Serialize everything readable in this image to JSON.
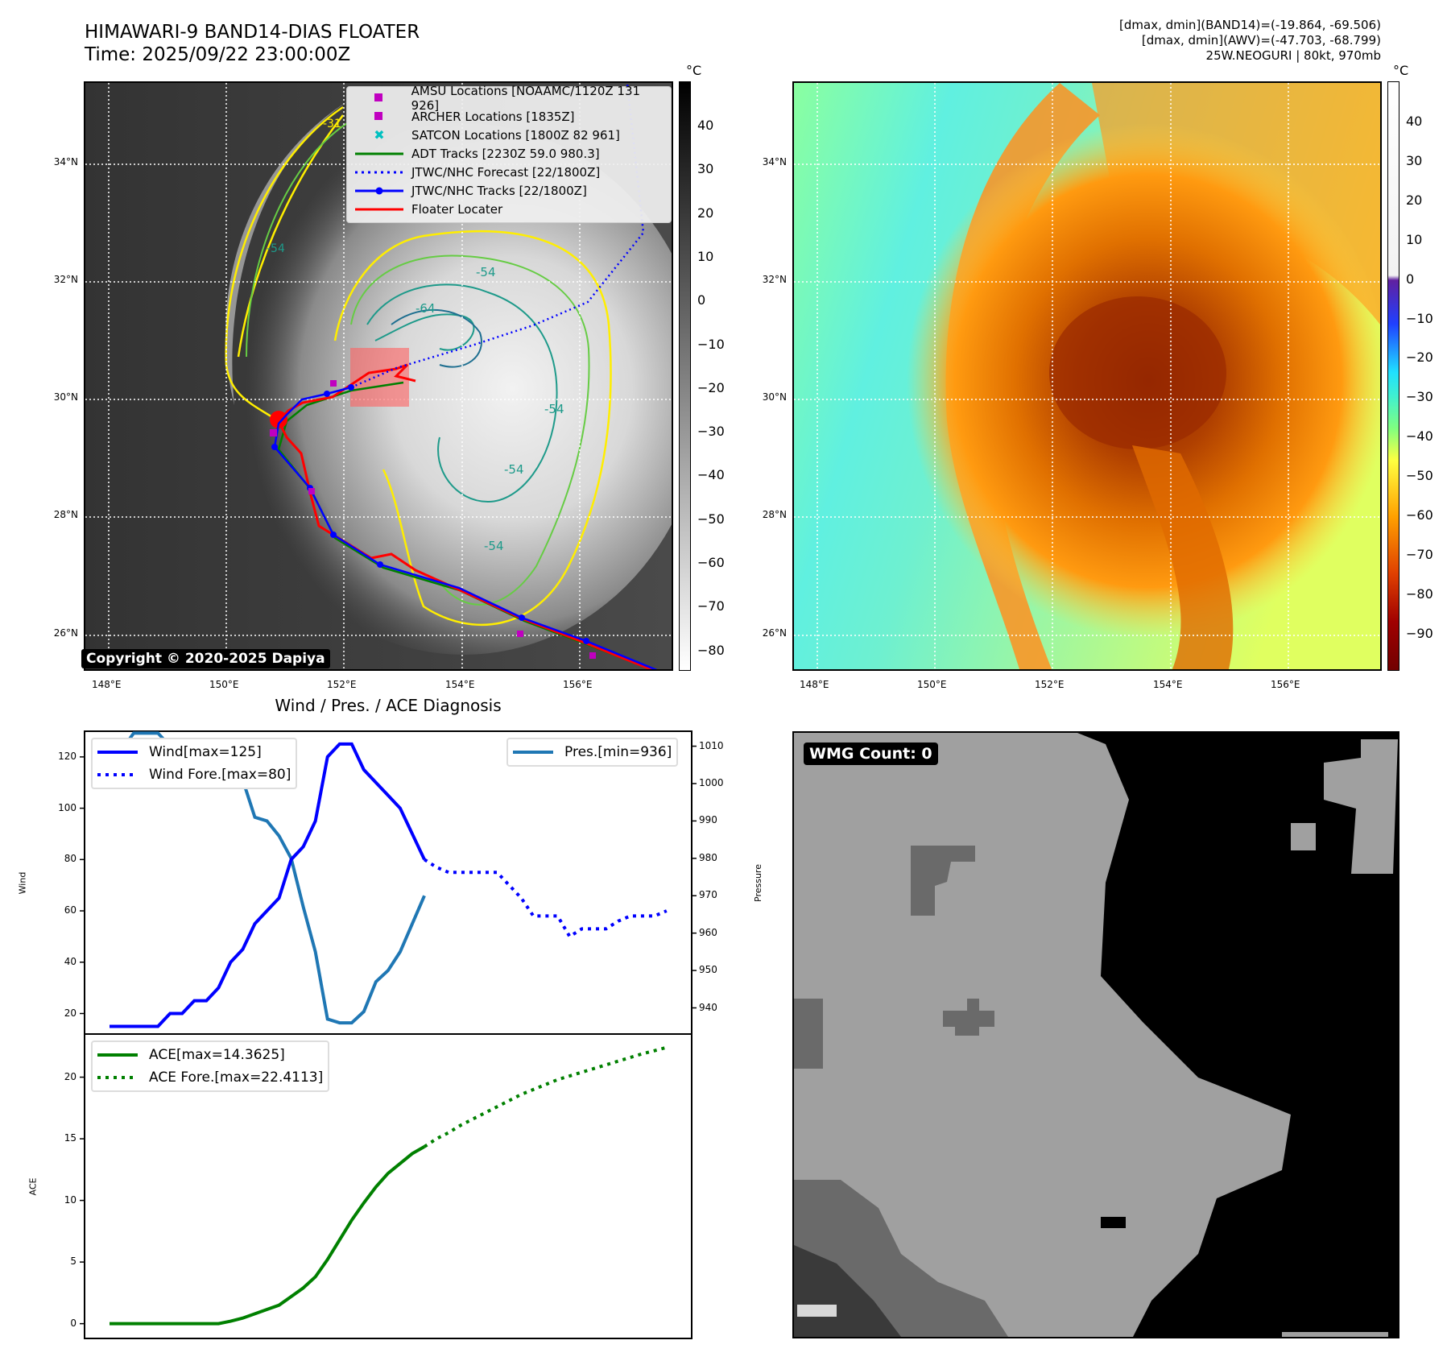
{
  "header": {
    "title_line1": "HIMAWARI-9 BAND14-DIAS FLOATER",
    "title_line2": "Time: 2025/09/22 23:00:00Z",
    "info_line1": "[dmax, dmin](BAND14)=(-19.864, -69.506)",
    "info_line2": "[dmax, dmin](AWV)=(-47.703, -68.799)",
    "info_line3": "25W.NEOGURI | 80kt, 970mb"
  },
  "map": {
    "lat_labels": [
      "34°N",
      "32°N",
      "30°N",
      "28°N",
      "26°N"
    ],
    "lon_labels": [
      "148°E",
      "150°E",
      "152°E",
      "154°E",
      "156°E"
    ],
    "contour_labels": [
      "-54",
      "-54",
      "-64",
      "-54",
      "-54",
      "-54",
      "-31"
    ],
    "copyright": "Copyright © 2020-2025 Dapiya",
    "legend": [
      {
        "label": "AMSU Locations [NOAAMC/1120Z 131 926]",
        "symbol": "square",
        "color": "#c000c0"
      },
      {
        "label": "ARCHER Locations [1835Z]",
        "symbol": "square",
        "color": "#c000c0"
      },
      {
        "label": "SATCON Locations [1800Z 82 961]",
        "symbol": "x",
        "color": "#00c0c0"
      },
      {
        "label": "ADT Tracks [2230Z 59.0 980.3]",
        "symbol": "line",
        "color": "#008000"
      },
      {
        "label": "JTWC/NHC Forecast [22/1800Z]",
        "symbol": "dotted",
        "color": "#0000ff"
      },
      {
        "label": "JTWC/NHC Tracks [22/1800Z]",
        "symbol": "line-dot",
        "color": "#0000ff"
      },
      {
        "label": "Floater Locater",
        "symbol": "line",
        "color": "#ff0000"
      }
    ]
  },
  "colorbar_band14": {
    "unit": "°C",
    "ticks": [
      "40",
      "30",
      "20",
      "10",
      "0",
      "−10",
      "−20",
      "−30",
      "−40",
      "−50",
      "−60",
      "−70",
      "−80"
    ]
  },
  "colorbar_awv": {
    "unit": "°C",
    "ticks": [
      "40",
      "30",
      "20",
      "10",
      "0",
      "−10",
      "−20",
      "−30",
      "−40",
      "−50",
      "−60",
      "−70",
      "−80",
      "−90"
    ]
  },
  "wmg": {
    "label": "WMG Count: 0"
  },
  "chart_data": [
    {
      "type": "line",
      "title": "Wind / Pres. / ACE Diagnosis",
      "ylabel": "Wind",
      "y2label": "Pressure",
      "ylim": [
        12,
        130
      ],
      "y2lim": [
        933,
        1014
      ],
      "yticks": [
        20,
        40,
        60,
        80,
        100,
        120
      ],
      "y2ticks": [
        940,
        950,
        960,
        970,
        980,
        990,
        1000,
        1010
      ],
      "series": [
        {
          "name": "Wind[max=125]",
          "axis": "left",
          "style": "solid",
          "color": "#0000ff",
          "x_start": 0,
          "values": [
            15,
            15,
            15,
            15,
            15,
            20,
            20,
            25,
            25,
            30,
            40,
            45,
            55,
            60,
            65,
            80,
            85,
            95,
            120,
            125,
            125,
            115,
            110,
            105,
            100,
            90,
            80
          ]
        },
        {
          "name": "Wind Fore.[max=80]",
          "axis": "left",
          "style": "dotted",
          "color": "#0000ff",
          "x_start": 26,
          "values": [
            80,
            77,
            75,
            75,
            75,
            75,
            75,
            70,
            65,
            58,
            58,
            58,
            50,
            53,
            53,
            53,
            56,
            58,
            58,
            58,
            60
          ]
        },
        {
          "name": "Pres.[min=936]",
          "axis": "right",
          "style": "solid",
          "color": "#1f77b4",
          "x_start": 0,
          "values": [
            1009,
            1009,
            1013.5,
            1013.5,
            1013.5,
            1010,
            1009,
            1009,
            1009,
            1008.5,
            1005,
            1001,
            991,
            990,
            986,
            980,
            967,
            955,
            937,
            936,
            936,
            939,
            947,
            950,
            955,
            962.5,
            970
          ]
        }
      ]
    },
    {
      "type": "line",
      "ylabel": "ACE",
      "ylim": [
        -1.2,
        23.5
      ],
      "yticks": [
        0,
        5,
        10,
        15,
        20
      ],
      "series": [
        {
          "name": "ACE[max=14.3625]",
          "style": "solid",
          "color": "#008000",
          "x_start": 0,
          "values": [
            0,
            0,
            0,
            0,
            0,
            0,
            0,
            0,
            0,
            0,
            0.2,
            0.45,
            0.8,
            1.15,
            1.5,
            2.2,
            2.9,
            3.8,
            5.2,
            6.8,
            8.4,
            9.8,
            11.1,
            12.2,
            13.0,
            13.8,
            14.3625
          ]
        },
        {
          "name": "ACE Fore.[max=22.4113]",
          "style": "dotted",
          "color": "#008000",
          "x_start": 26,
          "values": [
            14.3625,
            15.0,
            15.5,
            16.1,
            16.6,
            17.1,
            17.6,
            18.1,
            18.6,
            19.0,
            19.4,
            19.8,
            20.1,
            20.4,
            20.7,
            21.0,
            21.3,
            21.6,
            21.9,
            22.15,
            22.4113
          ]
        }
      ]
    }
  ]
}
